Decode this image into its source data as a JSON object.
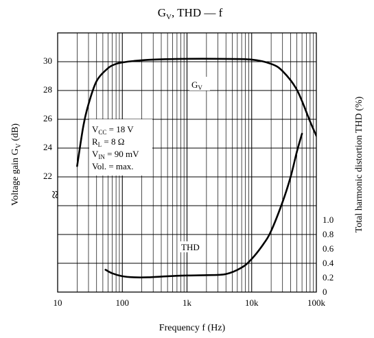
{
  "chart_data": {
    "type": "line",
    "title": {
      "main": "G",
      "main_sub": "V",
      "rest": ", THD — f"
    },
    "xlabel": "Frequency  f  (Hz)",
    "ylabel_left": {
      "main": "Voltage gain  G",
      "sub": "V",
      "unit": "  (dB)"
    },
    "ylabel_right": "Total harmonic distortion  THD  (%)",
    "x_scale": "log",
    "xlim": [
      10,
      100000
    ],
    "x_ticks": [
      {
        "value": 10,
        "label": "10"
      },
      {
        "value": 100,
        "label": "100"
      },
      {
        "value": 1000,
        "label": "1k"
      },
      {
        "value": 10000,
        "label": "10k"
      },
      {
        "value": 100000,
        "label": "100k"
      }
    ],
    "y_left_ticks": [
      {
        "value": 22,
        "label": "22"
      },
      {
        "value": 24,
        "label": "24"
      },
      {
        "value": 26,
        "label": "26"
      },
      {
        "value": 28,
        "label": "28"
      },
      {
        "value": 30,
        "label": "30"
      }
    ],
    "y_right_ticks": [
      {
        "value": 0,
        "label": "0"
      },
      {
        "value": 0.2,
        "label": "0.2"
      },
      {
        "value": 0.4,
        "label": "0.4"
      },
      {
        "value": 0.6,
        "label": "0.6"
      },
      {
        "value": 0.8,
        "label": "0.8"
      },
      {
        "value": 1.0,
        "label": "1.0"
      }
    ],
    "y_left_visible_range": [
      22,
      32
    ],
    "axis_break_symbol": "≈",
    "grid": true,
    "conditions": [
      {
        "main": "V",
        "sub": "CC",
        "rest": " = 18 V"
      },
      {
        "main": "R",
        "sub": "L",
        "rest": " = 8 Ω"
      },
      {
        "main": "V",
        "sub": "IN",
        "rest": " = 90 mV"
      },
      {
        "main": "Vol. = max.",
        "sub": "",
        "rest": ""
      }
    ],
    "series": [
      {
        "name": "GV",
        "label_main": "G",
        "label_sub": "V",
        "axis": "left",
        "x": [
          20,
          25,
          30,
          40,
          60,
          80,
          100,
          150,
          300,
          1000,
          3000,
          10000,
          20000,
          30000,
          50000,
          80000,
          100000
        ],
        "y": [
          22.7,
          25.5,
          27.0,
          28.6,
          29.5,
          29.8,
          29.9,
          30.0,
          30.1,
          30.15,
          30.15,
          30.1,
          29.8,
          29.3,
          28.0,
          25.8,
          24.8
        ]
      },
      {
        "name": "THD",
        "label_main": "THD",
        "label_sub": "",
        "axis": "right",
        "x": [
          55,
          70,
          100,
          150,
          250,
          500,
          1000,
          2000,
          4000,
          7000,
          10000,
          15000,
          20000,
          30000,
          40000,
          50000,
          60000
        ],
        "y": [
          0.31,
          0.26,
          0.22,
          0.205,
          0.205,
          0.22,
          0.23,
          0.235,
          0.25,
          0.34,
          0.46,
          0.66,
          0.85,
          1.25,
          1.6,
          1.95,
          2.2
        ]
      }
    ]
  }
}
